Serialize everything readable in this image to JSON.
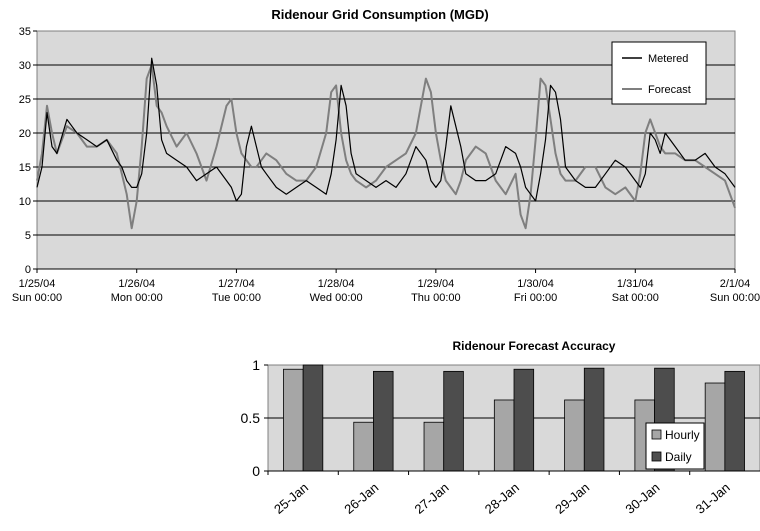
{
  "chart_data": [
    {
      "type": "line",
      "title": "Ridenour Grid Consumption (MGD)",
      "xlabel": "",
      "ylabel": "",
      "ylim": [
        0,
        35
      ],
      "yticks": [
        0,
        5,
        10,
        15,
        20,
        25,
        30,
        35
      ],
      "xlim_days": [
        0,
        7
      ],
      "xtick_labels": [
        [
          "1/25/04",
          "Sun 00:00"
        ],
        [
          "1/26/04",
          "Mon 00:00"
        ],
        [
          "1/27/04",
          "Tue 00:00"
        ],
        [
          "1/28/04",
          "Wed 00:00"
        ],
        [
          "1/29/04",
          "Thu 00:00"
        ],
        [
          "1/30/04",
          "Fri 00:00"
        ],
        [
          "1/31/04",
          "Sat 00:00"
        ],
        [
          "2/1/04",
          "Sun 00:00"
        ]
      ],
      "grid": "horizontal",
      "legend": "top-right",
      "series": [
        {
          "name": "Metered",
          "color": "#000000",
          "x_days": [
            0.0,
            0.05,
            0.1,
            0.15,
            0.2,
            0.3,
            0.4,
            0.5,
            0.6,
            0.7,
            0.8,
            0.85,
            0.9,
            0.95,
            1.0,
            1.05,
            1.1,
            1.15,
            1.2,
            1.25,
            1.3,
            1.4,
            1.5,
            1.6,
            1.7,
            1.8,
            1.9,
            1.95,
            2.0,
            2.05,
            2.1,
            2.15,
            2.2,
            2.25,
            2.3,
            2.4,
            2.5,
            2.6,
            2.7,
            2.8,
            2.9,
            2.95,
            3.0,
            3.05,
            3.1,
            3.15,
            3.2,
            3.3,
            3.4,
            3.5,
            3.6,
            3.7,
            3.8,
            3.9,
            3.95,
            4.0,
            4.05,
            4.1,
            4.15,
            4.2,
            4.25,
            4.3,
            4.4,
            4.5,
            4.6,
            4.7,
            4.8,
            4.85,
            4.9,
            4.95,
            5.0,
            5.05,
            5.1,
            5.15,
            5.2,
            5.25,
            5.3,
            5.4,
            5.5,
            5.6,
            5.7,
            5.8,
            5.9,
            6.0,
            6.05,
            6.1,
            6.15,
            6.2,
            6.25,
            6.3,
            6.4,
            6.5,
            6.6,
            6.7,
            6.8,
            6.9,
            7.0
          ],
          "y": [
            12,
            15,
            23,
            18,
            17,
            22,
            20,
            19,
            18,
            19,
            16,
            15,
            13,
            12,
            12,
            14,
            20,
            31,
            27,
            19,
            17,
            16,
            15,
            13,
            14,
            15,
            13,
            12,
            10,
            11,
            18,
            21,
            18,
            15,
            14,
            12,
            11,
            12,
            13,
            12,
            11,
            14,
            19,
            27,
            24,
            17,
            14,
            13,
            12,
            13,
            12,
            14,
            18,
            16,
            13,
            12,
            13,
            18,
            24,
            21,
            18,
            14,
            13,
            13,
            14,
            18,
            17,
            15,
            12,
            11,
            10,
            14,
            19,
            27,
            26,
            22,
            15,
            13,
            12,
            12,
            14,
            16,
            15,
            13,
            12,
            14,
            20,
            19,
            17,
            20,
            18,
            16,
            16,
            17,
            15,
            14,
            12
          ]
        },
        {
          "name": "Forecast",
          "color": "#7f7f7f",
          "x_days": [
            0.0,
            0.05,
            0.1,
            0.15,
            0.2,
            0.3,
            0.4,
            0.5,
            0.6,
            0.7,
            0.8,
            0.85,
            0.9,
            0.95,
            1.0,
            1.05,
            1.1,
            1.15,
            1.2,
            1.25,
            1.3,
            1.4,
            1.5,
            1.6,
            1.7,
            1.8,
            1.9,
            1.95,
            2.0,
            2.05,
            2.1,
            2.15,
            2.2,
            2.25,
            2.3,
            2.4,
            2.5,
            2.6,
            2.7,
            2.8,
            2.9,
            2.95,
            3.0,
            3.05,
            3.1,
            3.15,
            3.2,
            3.3,
            3.4,
            3.5,
            3.6,
            3.7,
            3.8,
            3.9,
            3.95,
            4.0,
            4.05,
            4.1,
            4.15,
            4.2,
            4.25,
            4.3,
            4.4,
            4.5,
            4.6,
            4.7,
            4.8,
            4.85,
            4.9,
            4.95,
            5.0,
            5.05,
            5.1,
            5.15,
            5.2,
            5.25,
            5.3,
            5.4,
            5.5,
            5.6,
            5.7,
            5.8,
            5.9,
            6.0,
            6.05,
            6.1,
            6.15,
            6.2,
            6.25,
            6.3,
            6.4,
            6.5,
            6.6,
            6.7,
            6.8,
            6.9,
            7.0
          ],
          "y": [
            13,
            17,
            24,
            20,
            17,
            21,
            20,
            18,
            18,
            19,
            17,
            14,
            11,
            6,
            10,
            18,
            28,
            30,
            24,
            23,
            21,
            18,
            20,
            17,
            13,
            18,
            24,
            25,
            20,
            17,
            16,
            15,
            15,
            16,
            17,
            16,
            14,
            13,
            13,
            15,
            20,
            26,
            27,
            20,
            16,
            14,
            13,
            12,
            13,
            15,
            16,
            17,
            20,
            28,
            26,
            20,
            16,
            13,
            12,
            11,
            13,
            16,
            18,
            17,
            13,
            11,
            14,
            8,
            6,
            11,
            19,
            28,
            27,
            22,
            17,
            14,
            13,
            13,
            15,
            15,
            12,
            11,
            12,
            10,
            14,
            20,
            22,
            20,
            18,
            17,
            17,
            16,
            16,
            15,
            14,
            13,
            9
          ]
        }
      ]
    },
    {
      "type": "bar",
      "title": "Ridenour Forecast Accuracy",
      "xlabel": "",
      "ylabel": "",
      "ylim": [
        0,
        1
      ],
      "yticks": [
        0,
        0.5,
        1
      ],
      "ytick_labels": [
        "0",
        "0.5",
        "1"
      ],
      "grid": "horizontal",
      "legend": "right",
      "categories": [
        "25-Jan",
        "26-Jan",
        "27-Jan",
        "28-Jan",
        "29-Jan",
        "30-Jan",
        "31-Jan"
      ],
      "series": [
        {
          "name": "Hourly",
          "color": "#a6a6a6",
          "values": [
            0.96,
            0.46,
            0.46,
            0.67,
            0.67,
            0.67,
            0.83
          ]
        },
        {
          "name": "Daily",
          "color": "#4d4d4d",
          "values": [
            1.0,
            0.94,
            0.94,
            0.96,
            0.97,
            0.97,
            0.94
          ]
        }
      ]
    }
  ]
}
